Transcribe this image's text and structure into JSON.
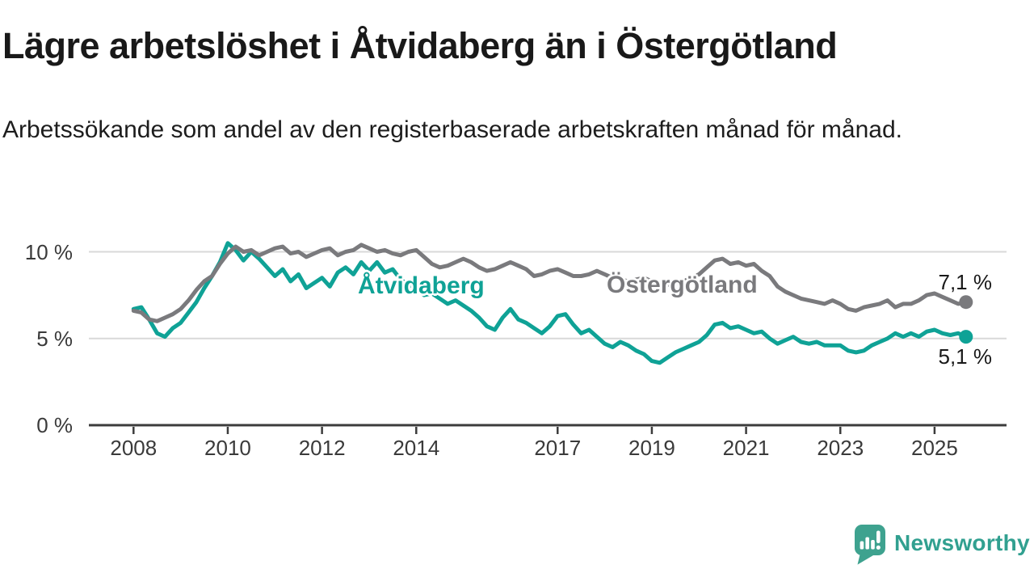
{
  "title": "Lägre arbetslöshet i Åtvidaberg än i Östergötland",
  "subtitle": "Arbetssökande som andel av den registerbaserade arbetskraften månad för månad.",
  "chart_data": {
    "type": "line",
    "x_unit": "year (monthly observations, Jan 2008 – Sep 2025, plotted every 2nd month)",
    "x_start": 2008,
    "x_step_years": 0.166667,
    "x_ticks": [
      2008,
      2010,
      2012,
      2014,
      2017,
      2019,
      2021,
      2023,
      2025
    ],
    "y_ticks": [
      {
        "value": 0,
        "label": "0 %"
      },
      {
        "value": 5,
        "label": "5 %"
      },
      {
        "value": 10,
        "label": "10 %"
      }
    ],
    "ylim": [
      0,
      12
    ],
    "grid": "horizontal",
    "legend_position": "inline-labels-on-lines",
    "series": [
      {
        "name": "Åtvidaberg",
        "color": "#0FA296",
        "end_value": 5.1,
        "end_label": "5,1 %",
        "values": [
          6.7,
          6.8,
          6.1,
          5.3,
          5.1,
          5.6,
          5.9,
          6.5,
          7.1,
          7.9,
          8.6,
          9.4,
          10.5,
          10.1,
          9.5,
          10.0,
          9.6,
          9.1,
          8.6,
          9.0,
          8.3,
          8.7,
          7.9,
          8.2,
          8.5,
          8.0,
          8.8,
          9.1,
          8.7,
          9.4,
          8.9,
          9.4,
          8.8,
          9.0,
          8.4,
          8.1,
          7.9,
          7.5,
          7.6,
          7.3,
          7.0,
          7.2,
          6.9,
          6.6,
          6.2,
          5.7,
          5.5,
          6.2,
          6.7,
          6.1,
          5.9,
          5.6,
          5.3,
          5.7,
          6.3,
          6.4,
          5.8,
          5.3,
          5.5,
          5.1,
          4.7,
          4.5,
          4.8,
          4.6,
          4.3,
          4.1,
          3.7,
          3.6,
          3.9,
          4.2,
          4.4,
          4.6,
          4.8,
          5.2,
          5.8,
          5.9,
          5.6,
          5.7,
          5.5,
          5.3,
          5.4,
          5.0,
          4.7,
          4.9,
          5.1,
          4.8,
          4.7,
          4.8,
          4.6,
          4.6,
          4.6,
          4.3,
          4.2,
          4.3,
          4.6,
          4.8,
          5.0,
          5.3,
          5.1,
          5.3,
          5.1,
          5.4,
          5.5,
          5.3,
          5.2,
          5.3,
          5.1
        ]
      },
      {
        "name": "Östergötland",
        "color": "#7A7A7D",
        "end_value": 7.1,
        "end_label": "7,1 %",
        "values": [
          6.6,
          6.5,
          6.1,
          6.0,
          6.2,
          6.4,
          6.7,
          7.2,
          7.8,
          8.3,
          8.6,
          9.3,
          9.9,
          10.3,
          10.0,
          10.1,
          9.8,
          10.0,
          10.2,
          10.3,
          9.9,
          10.0,
          9.7,
          9.9,
          10.1,
          10.2,
          9.8,
          10.0,
          10.1,
          10.4,
          10.2,
          10.0,
          10.1,
          9.9,
          9.8,
          10.0,
          10.1,
          9.7,
          9.3,
          9.1,
          9.2,
          9.4,
          9.6,
          9.4,
          9.1,
          8.9,
          9.0,
          9.2,
          9.4,
          9.2,
          9.0,
          8.6,
          8.7,
          8.9,
          9.0,
          8.8,
          8.6,
          8.6,
          8.7,
          8.9,
          8.7,
          8.5,
          8.4,
          8.3,
          8.4,
          8.5,
          8.3,
          8.2,
          8.1,
          8.2,
          8.3,
          8.5,
          8.7,
          9.1,
          9.5,
          9.6,
          9.3,
          9.4,
          9.2,
          9.3,
          8.9,
          8.6,
          8.0,
          7.7,
          7.5,
          7.3,
          7.2,
          7.1,
          7.0,
          7.2,
          7.0,
          6.7,
          6.6,
          6.8,
          6.9,
          7.0,
          7.2,
          6.8,
          7.0,
          7.0,
          7.2,
          7.5,
          7.6,
          7.4,
          7.2,
          7.0,
          7.1
        ]
      }
    ]
  },
  "branding": {
    "logo_text": "Newsworthy",
    "logo_color": "#3EA28F"
  }
}
